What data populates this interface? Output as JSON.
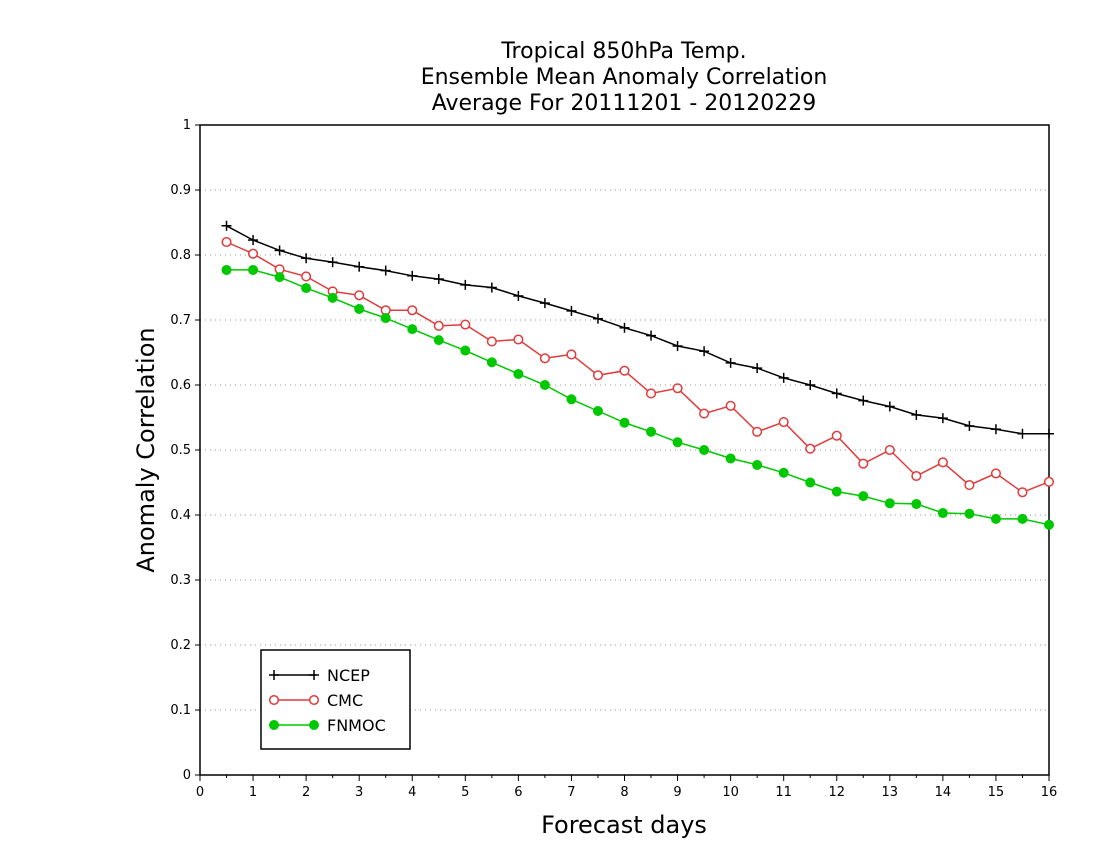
{
  "chart_data": {
    "type": "line",
    "title": [
      "Tropical 850hPa Temp.",
      "Ensemble Mean Anomaly Correlation",
      "Average For 20111201 - 20120229"
    ],
    "xlabel": "Forecast days",
    "ylabel": "Anomaly Correlation",
    "xlim": [
      0,
      16
    ],
    "ylim": [
      0,
      1
    ],
    "x_ticks": [
      "0",
      "1",
      "2",
      "3",
      "4",
      "5",
      "6",
      "7",
      "8",
      "9",
      "10",
      "11",
      "12",
      "13",
      "14",
      "15",
      "16"
    ],
    "y_ticks": [
      "0",
      "0.1",
      "0.2",
      "0.3",
      "0.4",
      "0.5",
      "0.6",
      "0.7",
      "0.8",
      "0.9",
      "1"
    ],
    "grid": "horizontal dotted",
    "legend_position": "bottom-left",
    "x": [
      0.5,
      1,
      1.5,
      2,
      2.5,
      3,
      3.5,
      4,
      4.5,
      5,
      5.5,
      6,
      6.5,
      7,
      7.5,
      8,
      8.5,
      9,
      9.5,
      10,
      10.5,
      11,
      11.5,
      12,
      12.5,
      13,
      13.5,
      14,
      14.5,
      15,
      15.5,
      16
    ],
    "series": [
      {
        "name": "NCEP",
        "color": "#000000",
        "marker": "plus",
        "values": [
          0.845,
          0.823,
          0.807,
          0.795,
          0.789,
          0.782,
          0.776,
          0.768,
          0.763,
          0.754,
          0.75,
          0.737,
          0.726,
          0.714,
          0.702,
          0.688,
          0.676,
          0.66,
          0.652,
          0.634,
          0.626,
          0.611,
          0.6,
          0.587,
          0.576,
          0.567,
          0.554,
          0.549,
          0.537,
          0.532,
          0.525,
          0.525
        ]
      },
      {
        "name": "CMC",
        "color": "#e03c3c",
        "marker": "open-circle",
        "values": [
          0.82,
          0.802,
          0.778,
          0.767,
          0.744,
          0.738,
          0.715,
          0.715,
          0.691,
          0.693,
          0.667,
          0.67,
          0.641,
          0.647,
          0.615,
          0.622,
          0.587,
          0.595,
          0.556,
          0.568,
          0.528,
          0.543,
          0.502,
          0.522,
          0.479,
          0.5,
          0.46,
          0.481,
          0.446,
          0.464,
          0.435,
          0.451
        ]
      },
      {
        "name": "FNMOC",
        "color": "#00c800",
        "marker": "filled-circle",
        "values": [
          0.777,
          0.777,
          0.766,
          0.749,
          0.734,
          0.717,
          0.703,
          0.686,
          0.669,
          0.653,
          0.635,
          0.617,
          0.6,
          0.578,
          0.56,
          0.542,
          0.528,
          0.512,
          0.5,
          0.487,
          0.477,
          0.465,
          0.45,
          0.436,
          0.429,
          0.418,
          0.417,
          0.403,
          0.402,
          0.394,
          0.394,
          0.385
        ]
      }
    ]
  }
}
